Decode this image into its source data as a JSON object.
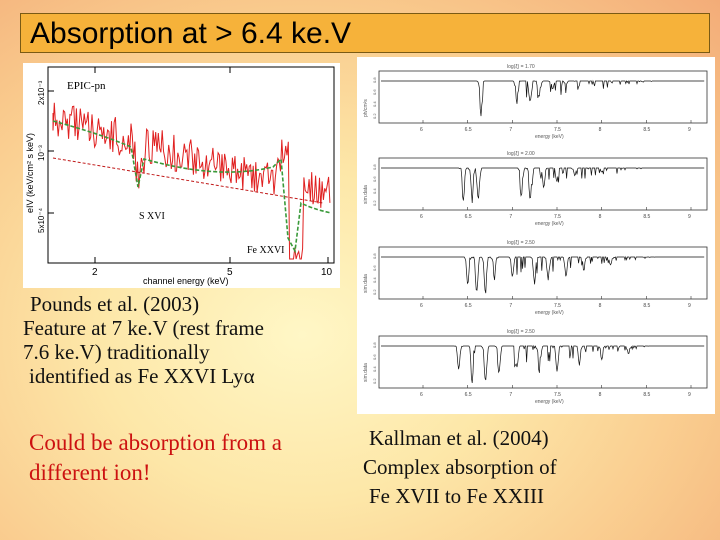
{
  "slide": {
    "title": "Absorption at > 6.4 ke.V",
    "title_bar_color": "#f6b23a"
  },
  "left_plot": {
    "label_instrument": "EPIC-pn",
    "label_s": "S XVI",
    "label_fe": "Fe XXVI",
    "xlabel": "channel energy (keV)",
    "ylabel": "eIV (keV/cm² s keV)",
    "x_ticks": [
      "2",
      "5",
      "10"
    ],
    "y_ticks": [
      "2x10⁻³",
      "10⁻³",
      "5x10⁻⁴"
    ],
    "data_color": "#e02020",
    "model_color": "#3a9a3a"
  },
  "right_plot": {
    "panels": [
      {
        "title": "log(ξ) = 1.70",
        "ylabel": "ph/cm²s",
        "y_ticks": [
          "0.2",
          "0.4",
          "0.6",
          "0.8"
        ],
        "x_ticks": [
          "6",
          "6.5",
          "7",
          "7.5",
          "8",
          "8.5",
          "9"
        ],
        "xlabel": "energy (keV)"
      },
      {
        "title": "log(ξ) = 2.00",
        "ylabel": "sim.data",
        "y_ticks": [
          "0.2",
          "0.4",
          "0.6",
          "0.8"
        ],
        "x_ticks": [
          "6",
          "6.5",
          "7",
          "7.5",
          "8",
          "8.5",
          "9"
        ],
        "xlabel": "energy (keV)"
      },
      {
        "title": "log(ξ) = 2.50",
        "ylabel": "sim.data",
        "y_ticks": [
          "0.2",
          "0.4",
          "0.6",
          "0.8"
        ],
        "x_ticks": [
          "6",
          "6.5",
          "7",
          "7.5",
          "8",
          "8.5",
          "9"
        ],
        "xlabel": "energy (keV)"
      },
      {
        "title": "log(ξ) = 2.50",
        "ylabel": "sim.data",
        "y_ticks": [
          "0.2",
          "0.4",
          "0.6",
          "0.8"
        ],
        "x_ticks": [
          "6",
          "6.5",
          "7",
          "7.5",
          "8",
          "8.5",
          "9"
        ],
        "xlabel": "energy (keV)"
      }
    ]
  },
  "captions": {
    "pounds": "Pounds et al. (2003)",
    "feature_lines": [
      "Feature at 7 ke.V (rest frame",
      "7.6 ke.V) traditionally",
      " identified as Fe XXVI Lyα"
    ],
    "ion_lines": [
      "Could be absorption from a",
      "different ion!"
    ],
    "kallman_lines": [
      "Kallman et al. (2004)",
      "Complex absorption of",
      "Fe XVII to Fe XXIII"
    ]
  }
}
